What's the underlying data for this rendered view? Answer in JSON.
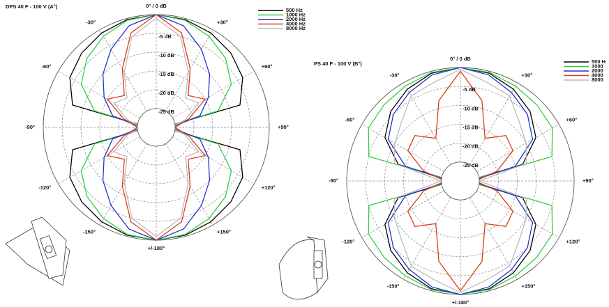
{
  "chart_data": [
    {
      "type": "polar",
      "title": "DPS 40 F - 100 V (A°)",
      "theta": [
        0,
        15,
        30,
        45,
        60,
        75,
        90,
        105,
        120,
        135,
        150,
        165,
        180,
        195,
        210,
        225,
        240,
        255,
        270,
        285,
        300,
        315,
        330,
        345
      ],
      "rlim": [
        -30,
        0
      ],
      "rticks": [
        {
          "value": -5,
          "label": "-5 dB"
        },
        {
          "value": -10,
          "label": "-10 dB"
        },
        {
          "value": -15,
          "label": "-15 dB"
        },
        {
          "value": -20,
          "label": "-20 dB"
        },
        {
          "value": -25,
          "label": "-25 dB"
        }
      ],
      "thetaticks": [
        {
          "value": 0,
          "label": "0° / 0 dB"
        },
        {
          "value": 30,
          "label": "+30°"
        },
        {
          "value": 60,
          "label": "+60°"
        },
        {
          "value": 90,
          "label": "+90°"
        },
        {
          "value": 120,
          "label": "+120°"
        },
        {
          "value": 150,
          "label": "+150°"
        },
        {
          "value": 180,
          "label": "+/-180°"
        },
        {
          "value": -150,
          "label": "-150°"
        },
        {
          "value": -120,
          "label": "-120°"
        },
        {
          "value": -90,
          "label": "-90°"
        },
        {
          "value": -60,
          "label": "-60°"
        },
        {
          "value": -30,
          "label": "-30°"
        }
      ],
      "series": [
        {
          "name": "500 Hz",
          "color": "#000000",
          "values": [
            0,
            -0.3,
            -1,
            -2,
            -3.5,
            -7,
            -28,
            -7,
            -3.5,
            -2,
            -1,
            -0.3,
            0,
            -0.3,
            -1,
            -2,
            -3.5,
            -7,
            -28,
            -7,
            -3.5,
            -2,
            -1,
            -0.3
          ]
        },
        {
          "name": "1000 Hz",
          "color": "#33cc44",
          "values": [
            0,
            -0.5,
            -2,
            -4,
            -7,
            -13,
            -28,
            -13,
            -7,
            -4,
            -2,
            -0.5,
            0,
            -0.5,
            -2,
            -4,
            -7,
            -13,
            -28,
            -13,
            -7,
            -4,
            -2,
            -0.5
          ]
        },
        {
          "name": "2000 Hz",
          "color": "#2233cc",
          "values": [
            0,
            -2,
            -6,
            -10,
            -14,
            -18,
            -26,
            -18,
            -14,
            -10,
            -6,
            -2,
            0,
            -2,
            -6,
            -10,
            -14,
            -18,
            -26,
            -18,
            -14,
            -10,
            -6,
            -2
          ]
        },
        {
          "name": "4000 Hz",
          "color": "#e03a10",
          "values": [
            0,
            -4,
            -12,
            -18,
            -15,
            -21,
            -25,
            -21,
            -15,
            -18,
            -12,
            -4,
            0,
            -4,
            -12,
            -18,
            -15,
            -21,
            -25,
            -21,
            -15,
            -18,
            -12,
            -4
          ]
        },
        {
          "name": "8000 Hz",
          "color": "#bbbbbb",
          "values": [
            -1,
            -5,
            -13,
            -19,
            -17,
            -22,
            -26,
            -22,
            -17,
            -19,
            -13,
            -5,
            -1,
            -5,
            -13,
            -19,
            -17,
            -22,
            -26,
            -22,
            -17,
            -19,
            -13,
            -5
          ]
        }
      ]
    },
    {
      "type": "polar",
      "title": "PS 40 F - 100 V (B°)",
      "theta": [
        0,
        15,
        30,
        45,
        60,
        75,
        90,
        105,
        120,
        135,
        150,
        165,
        180,
        195,
        210,
        225,
        240,
        255,
        270,
        285,
        300,
        315,
        330,
        345
      ],
      "rlim": [
        -30,
        0
      ],
      "rticks": [
        {
          "value": -5,
          "label": "-5 dB"
        },
        {
          "value": -10,
          "label": "-10 dB"
        },
        {
          "value": -15,
          "label": "-15 dB"
        },
        {
          "value": -20,
          "label": "-20 dB"
        },
        {
          "value": -25,
          "label": "-25 dB"
        }
      ],
      "thetaticks": [
        {
          "value": 0,
          "label": "0° / 0 dB"
        },
        {
          "value": 30,
          "label": "+30°"
        },
        {
          "value": 60,
          "label": "+60°"
        },
        {
          "value": 90,
          "label": "+90°"
        },
        {
          "value": 120,
          "label": "+120°"
        },
        {
          "value": 150,
          "label": "+150°"
        },
        {
          "value": 180,
          "label": "+/-180°"
        },
        {
          "value": -150,
          "label": "-150°"
        },
        {
          "value": -120,
          "label": "-120°"
        },
        {
          "value": -90,
          "label": "-90°"
        },
        {
          "value": -60,
          "label": "-60°"
        },
        {
          "value": -30,
          "label": "-30°"
        }
      ],
      "series": [
        {
          "name": "500 H",
          "color": "#000000",
          "values": [
            0,
            -0.5,
            -2,
            -4,
            -7,
            -13,
            -28,
            -13,
            -7,
            -4,
            -2,
            -0.5,
            0,
            -0.5,
            -2,
            -4,
            -7,
            -13,
            -28,
            -13,
            -7,
            -4,
            -2,
            -0.5
          ]
        },
        {
          "name": "1000",
          "color": "#33cc44",
          "values": [
            0,
            -0.3,
            -1,
            -1.5,
            -2,
            -5,
            -28,
            -5,
            -2,
            -1.5,
            -1,
            -0.3,
            0,
            -0.3,
            -1,
            -1.5,
            -2,
            -5,
            -28,
            -5,
            -2,
            -1.5,
            -1,
            -0.3
          ]
        },
        {
          "name": "2000",
          "color": "#2233cc",
          "values": [
            0,
            -1,
            -3,
            -5,
            -8,
            -15,
            -27,
            -15,
            -8,
            -5,
            -3,
            -1,
            0,
            -1,
            -3,
            -5,
            -8,
            -15,
            -27,
            -15,
            -8,
            -5,
            -3,
            -1
          ]
        },
        {
          "name": "4000",
          "color": "#e03a10",
          "values": [
            -1,
            -8,
            -17,
            -13,
            -14,
            -20,
            -26,
            -20,
            -14,
            -13,
            -17,
            -8,
            -1,
            -8,
            -17,
            -13,
            -14,
            -20,
            -26,
            -20,
            -14,
            -13,
            -17,
            -8
          ]
        },
        {
          "name": "8000",
          "color": "#bbbbbb",
          "values": [
            -0.5,
            -3,
            -4,
            -8,
            -10,
            -12,
            -25,
            -12,
            -10,
            -8,
            -4,
            -3,
            -0.5,
            -3,
            -4,
            -8,
            -10,
            -12,
            -25,
            -12,
            -10,
            -8,
            -4,
            -3
          ]
        }
      ]
    }
  ]
}
